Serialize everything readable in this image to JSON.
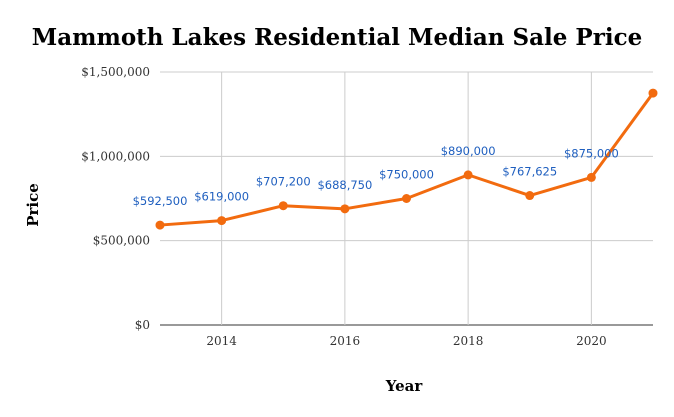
{
  "chart_data": {
    "type": "line",
    "title": "Mammoth Lakes Residential Median Sale Price",
    "xlabel": "Year",
    "ylabel": "Price",
    "x": [
      2013,
      2014,
      2015,
      2016,
      2017,
      2018,
      2019,
      2020,
      2021
    ],
    "x_ticks": [
      "2014",
      "2016",
      "2018",
      "2020"
    ],
    "y_ticks": [
      "$0",
      "$500,000",
      "$1,000,000",
      "$1,500,000"
    ],
    "ylim": [
      0,
      1500000
    ],
    "xlim": [
      2013,
      2021
    ],
    "grid": true,
    "legend": "none",
    "series": [
      {
        "color": "#f26b0f",
        "values": [
          592500,
          619000,
          707200,
          688750,
          750000,
          890000,
          767625,
          875000,
          1375000
        ],
        "labels": [
          "$592,500",
          "$619,000",
          "$707,200",
          "$688,750",
          "$750,000",
          "$890,000",
          "$767,625",
          "$875,000",
          ""
        ]
      }
    ]
  }
}
